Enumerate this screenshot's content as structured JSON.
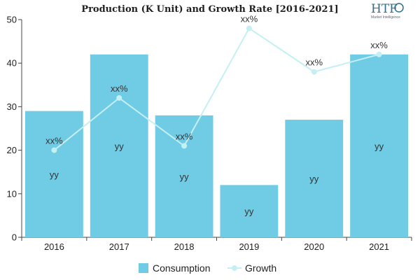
{
  "chart_data": {
    "type": "bar",
    "title": "Production (K Unit) and Growth Rate [2016-2021]",
    "xlabel": "",
    "ylabel": "",
    "categories": [
      "2016",
      "2017",
      "2018",
      "2019",
      "2020",
      "2021"
    ],
    "ylim": [
      0,
      50
    ],
    "yticks": [
      0,
      10,
      20,
      30,
      40,
      50
    ],
    "grid": false,
    "legend_position": "bottom",
    "series": [
      {
        "name": "Consumption",
        "type": "bar",
        "color": "#70cbe4",
        "values": [
          29,
          42,
          28,
          12,
          27,
          42
        ],
        "labels": [
          "yy",
          "yy",
          "yy",
          "yy",
          "yy",
          "yy"
        ]
      },
      {
        "name": "Growth",
        "type": "line",
        "color": "#c4f0f4",
        "values": [
          20,
          32,
          21,
          48,
          38,
          42
        ],
        "labels": [
          "xx%",
          "xx%",
          "xx%",
          "xx%",
          "xx%",
          "xx%"
        ]
      }
    ]
  },
  "logo": {
    "brand": "HTF",
    "subtitle": "Market Intelligence",
    "color": "#2e6e8e"
  }
}
